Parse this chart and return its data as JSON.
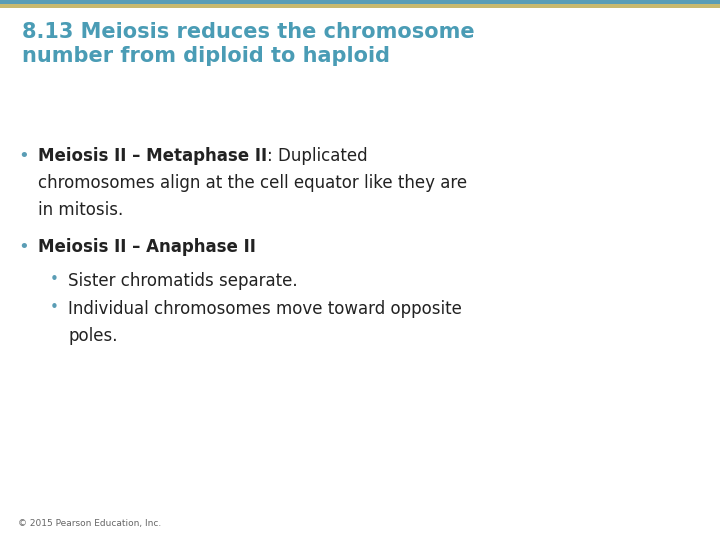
{
  "title_line1": "8.13 Meiosis reduces the chromosome",
  "title_line2": "number from diploid to haploid",
  "title_color": "#4a9cb5",
  "background_color": "#ffffff",
  "top_bar_color1": "#c8b96e",
  "top_bar_color2": "#5a9db5",
  "footer": "© 2015 Pearson Education, Inc.",
  "footer_color": "#666666",
  "bullet1_bold": "Meiosis II – Metaphase II",
  "bullet1_rest": ": Duplicated",
  "bullet1_line2": "chromosomes align at the cell equator like they are",
  "bullet1_line3": "in mitosis.",
  "bullet2_bold": "Meiosis II – Anaphase II",
  "sub_bullet1": "Sister chromatids separate.",
  "sub_bullet2a": "Individual chromosomes move toward opposite",
  "sub_bullet2b": "poles.",
  "bullet_color": "#222222",
  "bullet_dot_color": "#5a9db5",
  "title_fontsize": 15,
  "body_fontsize": 12,
  "footer_fontsize": 6.5
}
